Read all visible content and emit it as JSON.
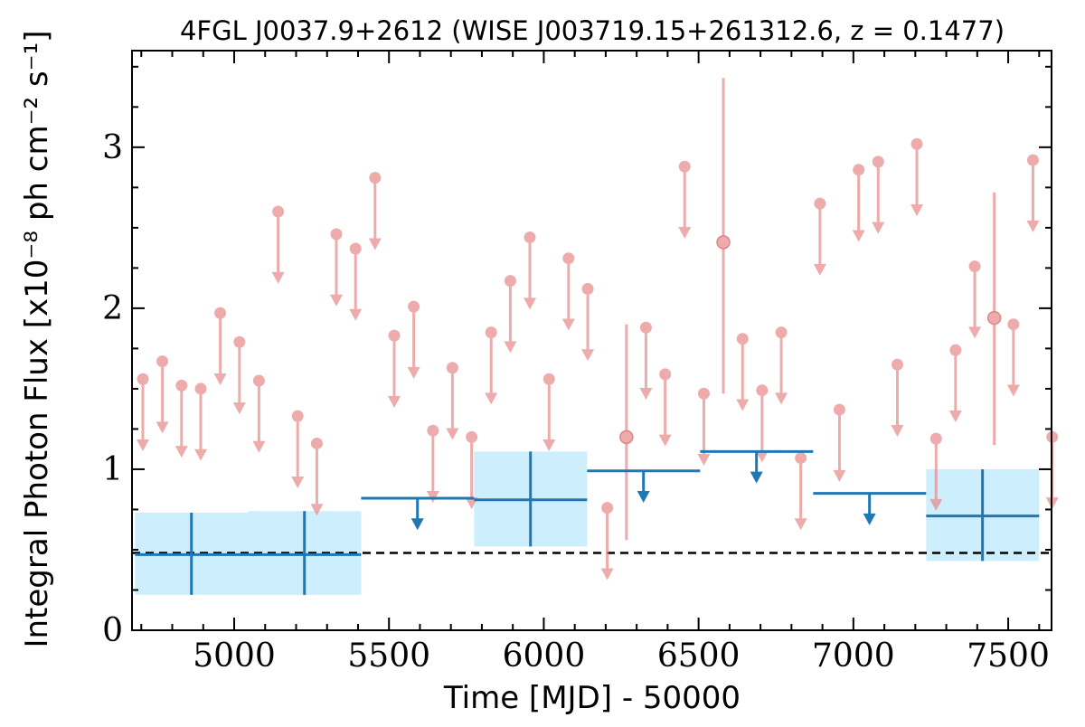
{
  "chart_data": {
    "type": "scatter",
    "title": "4FGL J0037.9+2612 (WISE J003719.15+261312.6, z = 0.1477)",
    "xlabel": "Time [MJD] - 50000",
    "ylabel": "Integral Photon Flux [x10⁻⁸ ph cm⁻² s⁻¹]",
    "xlim": [
      4670,
      7640
    ],
    "ylim": [
      0,
      3.6
    ],
    "xticks": [
      5000,
      5500,
      6000,
      6500,
      7000,
      7500
    ],
    "xtick_labels": [
      "5000",
      "5500",
      "6000",
      "6500",
      "7000",
      "7500"
    ],
    "yticks": [
      0,
      1,
      2,
      3
    ],
    "ytick_labels": [
      "0",
      "1",
      "2",
      "3"
    ],
    "average_flux": 0.48,
    "colors": {
      "bin_line": "#1f77b4",
      "bin_band": "#cdeefc",
      "short_bin": "#e88f8f",
      "average_line": "#000000"
    },
    "series": [
      {
        "kind": "long-bin-detections",
        "points": [
          {
            "x_start": 4680,
            "x_end": 5045,
            "x_center": 4862,
            "y": 0.47,
            "y_low": 0.22,
            "y_high": 0.73
          },
          {
            "x_start": 5045,
            "x_end": 5410,
            "x_center": 5227,
            "y": 0.47,
            "y_low": 0.22,
            "y_high": 0.74
          },
          {
            "x_start": 5775,
            "x_end": 6140,
            "x_center": 5957,
            "y": 0.81,
            "y_low": 0.52,
            "y_high": 1.11
          },
          {
            "x_start": 7235,
            "x_end": 7600,
            "x_center": 7417,
            "y": 0.71,
            "y_low": 0.43,
            "y_high": 1.0
          }
        ]
      },
      {
        "kind": "long-bin-upper-limits",
        "points": [
          {
            "x_start": 5410,
            "x_end": 5775,
            "x_center": 5592,
            "y": 0.82
          },
          {
            "x_start": 6140,
            "x_end": 6505,
            "x_center": 6322,
            "y": 0.99
          },
          {
            "x_start": 6505,
            "x_end": 6870,
            "x_center": 6687,
            "y": 1.11
          },
          {
            "x_start": 6870,
            "x_end": 7235,
            "x_center": 7052,
            "y": 0.85
          }
        ]
      },
      {
        "kind": "short-bin-upper-limits",
        "points": [
          {
            "x": 4705,
            "y": 1.56
          },
          {
            "x": 4768,
            "y": 1.67
          },
          {
            "x": 4830,
            "y": 1.52
          },
          {
            "x": 4892,
            "y": 1.5
          },
          {
            "x": 4955,
            "y": 1.97
          },
          {
            "x": 5017,
            "y": 1.79
          },
          {
            "x": 5080,
            "y": 1.55
          },
          {
            "x": 5142,
            "y": 2.6
          },
          {
            "x": 5205,
            "y": 1.33
          },
          {
            "x": 5267,
            "y": 1.16
          },
          {
            "x": 5330,
            "y": 2.46
          },
          {
            "x": 5392,
            "y": 2.37
          },
          {
            "x": 5455,
            "y": 2.81
          },
          {
            "x": 5517,
            "y": 1.83
          },
          {
            "x": 5580,
            "y": 2.01
          },
          {
            "x": 5642,
            "y": 1.24
          },
          {
            "x": 5705,
            "y": 1.63
          },
          {
            "x": 5767,
            "y": 1.2
          },
          {
            "x": 5830,
            "y": 1.85
          },
          {
            "x": 5892,
            "y": 2.17
          },
          {
            "x": 5955,
            "y": 2.44
          },
          {
            "x": 6017,
            "y": 1.56
          },
          {
            "x": 6080,
            "y": 2.31
          },
          {
            "x": 6142,
            "y": 2.12
          },
          {
            "x": 6205,
            "y": 0.76
          },
          {
            "x": 6330,
            "y": 1.88
          },
          {
            "x": 6392,
            "y": 1.59
          },
          {
            "x": 6455,
            "y": 2.88
          },
          {
            "x": 6517,
            "y": 1.47
          },
          {
            "x": 6642,
            "y": 1.81
          },
          {
            "x": 6705,
            "y": 1.49
          },
          {
            "x": 6767,
            "y": 1.85
          },
          {
            "x": 6830,
            "y": 1.07
          },
          {
            "x": 6892,
            "y": 2.65
          },
          {
            "x": 6955,
            "y": 1.37
          },
          {
            "x": 7017,
            "y": 2.86
          },
          {
            "x": 7080,
            "y": 2.91
          },
          {
            "x": 7142,
            "y": 1.65
          },
          {
            "x": 7205,
            "y": 3.02
          },
          {
            "x": 7267,
            "y": 1.19
          },
          {
            "x": 7330,
            "y": 1.74
          },
          {
            "x": 7392,
            "y": 2.26
          },
          {
            "x": 7517,
            "y": 1.9
          },
          {
            "x": 7580,
            "y": 2.92
          },
          {
            "x": 7642,
            "y": 1.2
          }
        ]
      },
      {
        "kind": "short-bin-detections",
        "points": [
          {
            "x": 6267,
            "y": 1.2,
            "y_low": 0.56,
            "y_high": 1.9
          },
          {
            "x": 6580,
            "y": 2.41,
            "y_low": 1.47,
            "y_high": 3.43
          },
          {
            "x": 7455,
            "y": 1.94,
            "y_low": 1.15,
            "y_high": 2.72
          }
        ]
      }
    ]
  }
}
